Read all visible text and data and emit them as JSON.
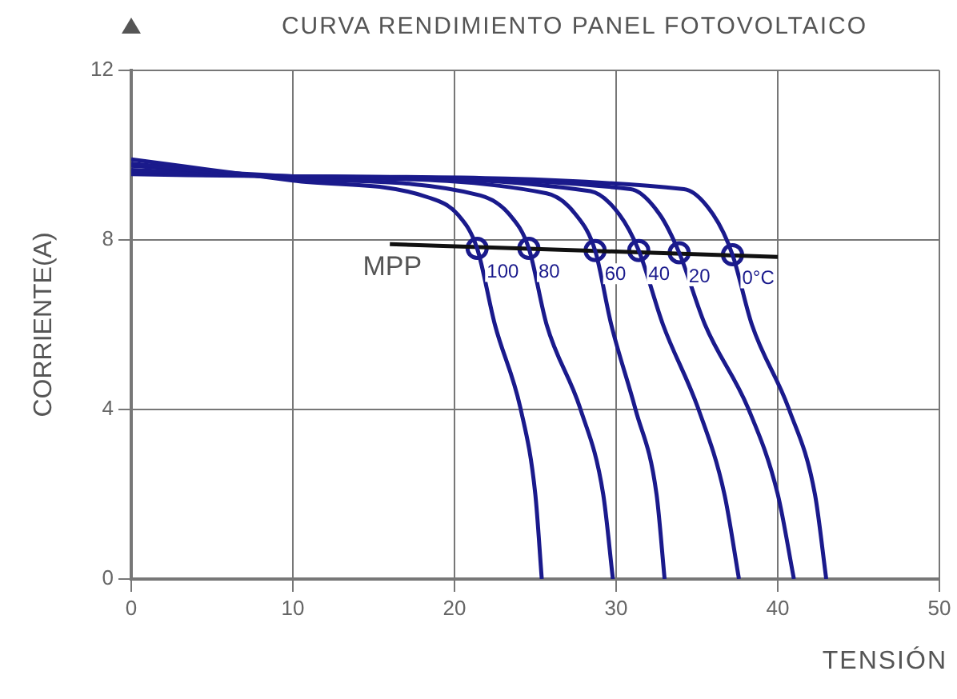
{
  "chart_data": {
    "type": "line",
    "title": "CURVA RENDIMIENTO PANEL FOTOVOLTAICO",
    "xlabel": "TENSIÓN",
    "ylabel": "CORRIENTE(A)",
    "xlim": [
      0,
      50
    ],
    "xticks": [
      0,
      10,
      20,
      30,
      40,
      50
    ],
    "ylim": [
      0,
      12
    ],
    "yticks": [
      0,
      4,
      8,
      12
    ],
    "grid": true,
    "legend": false,
    "marker": "none",
    "line_style": "solid",
    "series": [
      {
        "name": "100",
        "color": "#1a1a8c",
        "x": [
          0,
          10,
          18.4,
          20.2,
          21.4,
          22.5,
          24.1,
          25.0,
          25.4
        ],
        "values": [
          9.9,
          9.4,
          9.0,
          8.6,
          7.8,
          6,
          4,
          2,
          0
        ]
      },
      {
        "name": "80",
        "color": "#1a1a8c",
        "x": [
          0,
          10,
          21.6,
          23.4,
          24.6,
          25.7,
          27.8,
          29.2,
          29.8
        ],
        "values": [
          9.8,
          9.45,
          9.05,
          8.6,
          7.8,
          6,
          4,
          2,
          0
        ]
      },
      {
        "name": "60",
        "color": "#1a1a8c",
        "x": [
          0,
          10,
          25.7,
          27.5,
          28.7,
          29.7,
          31.2,
          32.5,
          33.0
        ],
        "values": [
          9.75,
          9.5,
          9.1,
          8.6,
          7.75,
          6,
          4,
          2,
          0
        ]
      },
      {
        "name": "40",
        "color": "#1a1a8c",
        "x": [
          0,
          10,
          28.4,
          30.2,
          31.4,
          32.9,
          35.1,
          36.7,
          37.6
        ],
        "values": [
          9.65,
          9.5,
          9.15,
          8.6,
          7.75,
          6,
          4,
          2,
          0
        ]
      },
      {
        "name": "20",
        "color": "#1a1a8c",
        "x": [
          0,
          10,
          30.9,
          32.7,
          33.9,
          35.5,
          38.2,
          40.0,
          41.0
        ],
        "values": [
          9.6,
          9.5,
          9.2,
          8.6,
          7.7,
          6,
          4,
          2,
          0
        ]
      },
      {
        "name": "0°C",
        "color": "#1a1a8c",
        "x": [
          0,
          10,
          34.2,
          36.0,
          37.2,
          38.4,
          40.7,
          42.3,
          43.0
        ],
        "values": [
          9.55,
          9.5,
          9.2,
          8.6,
          7.65,
          6,
          4,
          2,
          0
        ]
      },
      {
        "name": "MPP",
        "color": "#111111",
        "x": [
          16,
          40
        ],
        "values": [
          7.9,
          7.6
        ]
      },
      {
        "type": "scatter",
        "marker": "circle",
        "color": "#1a1a8c",
        "x": [
          21.4,
          24.6,
          28.7,
          31.4,
          33.9,
          37.2
        ],
        "values": [
          7.8,
          7.8,
          7.75,
          7.75,
          7.7,
          7.65
        ]
      }
    ]
  }
}
